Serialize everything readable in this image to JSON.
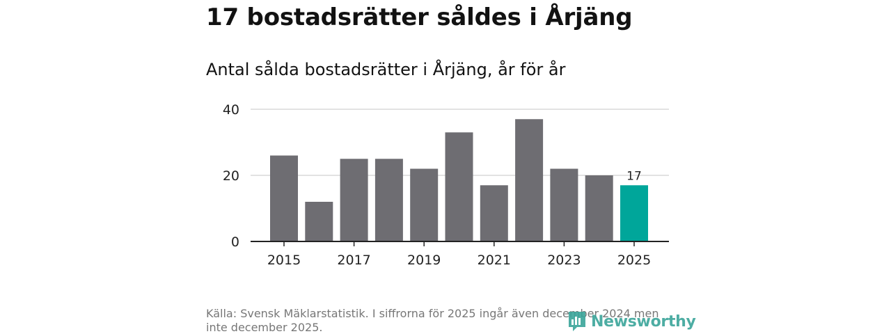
{
  "title": "17 bostadsrätter såldes i Årjäng",
  "subtitle": "Antal sålda bostadsrätter i Årjäng, år för år",
  "source": "Källa: Svensk Mäklarstatistik. I siffrorna för 2025 ingår även december 2024 men inte december 2025.",
  "logo_text": "Newsworthy",
  "colors": {
    "bar": "#6e6d72",
    "highlight": "#00a69a",
    "grid": "#d9d9d9",
    "axis": "#222222"
  },
  "chart_data": {
    "type": "bar",
    "categories": [
      "2015",
      "2016",
      "2017",
      "2018",
      "2019",
      "2020",
      "2021",
      "2022",
      "2023",
      "2024",
      "2025"
    ],
    "values": [
      26,
      12,
      25,
      25,
      22,
      33,
      17,
      37,
      22,
      20,
      17
    ],
    "highlight_index": 10,
    "highlight_label": "17",
    "x_tick_labels": [
      "2015",
      "2017",
      "2019",
      "2021",
      "2023",
      "2025"
    ],
    "y_ticks": [
      0,
      20,
      40
    ],
    "ylim": [
      0,
      40
    ],
    "grid": true
  }
}
